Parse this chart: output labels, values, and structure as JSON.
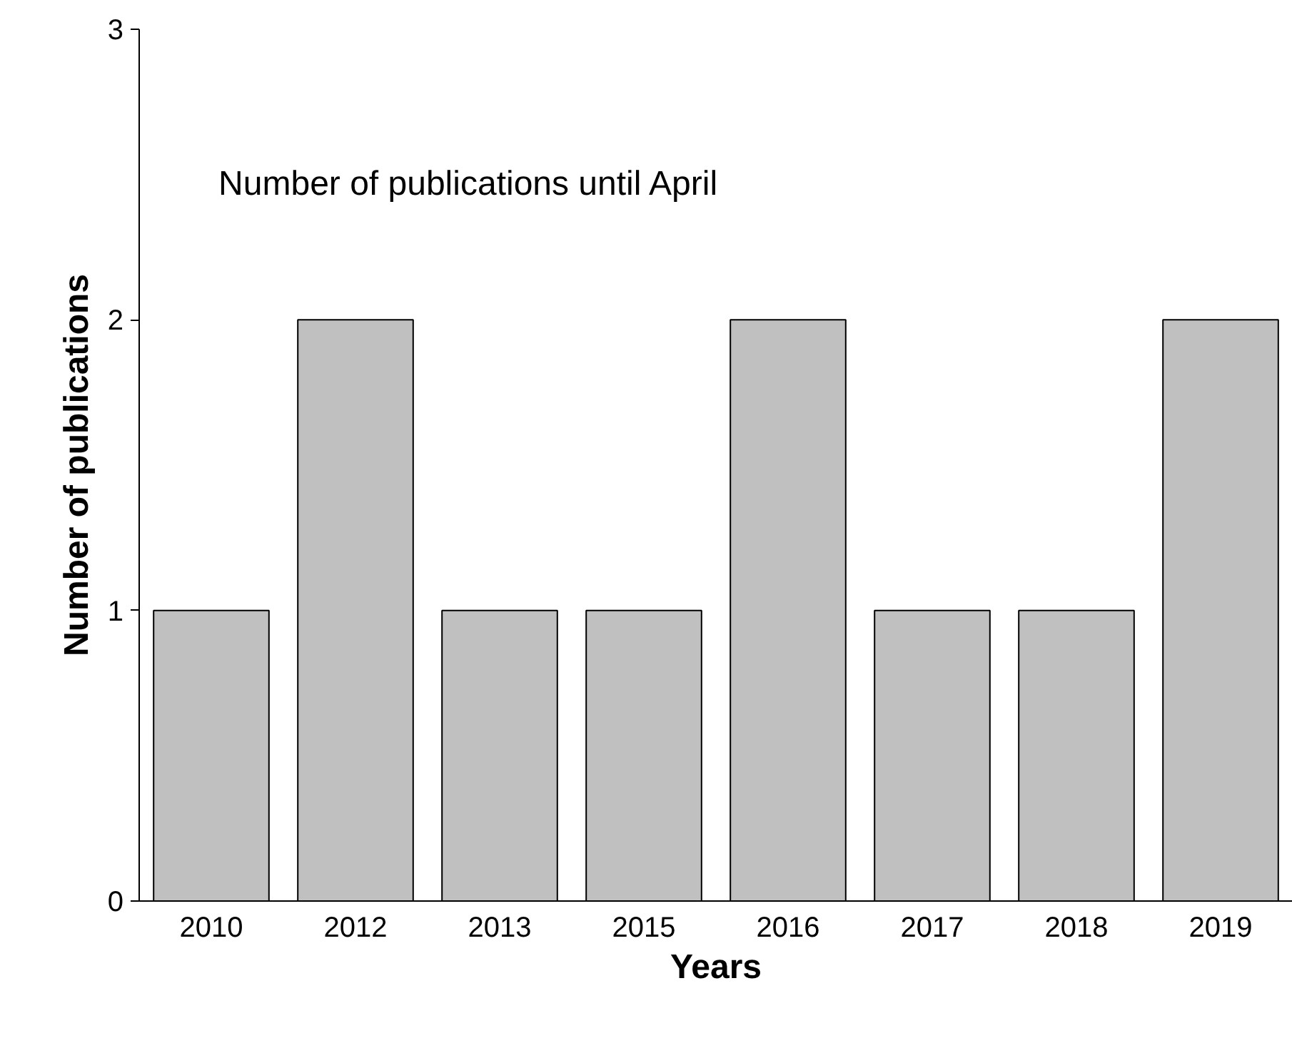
{
  "chart_data": {
    "type": "bar",
    "xlabel": "Years",
    "ylabel": "Number of publications",
    "annotations": [
      "Number of publications until April"
    ],
    "categories": [
      "2010",
      "2012",
      "2013",
      "2015",
      "2016",
      "2017",
      "2018",
      "2019"
    ],
    "values": [
      1,
      2,
      1,
      1,
      2,
      1,
      1,
      2
    ],
    "color": "#c0c0c0",
    "ylim": [
      0,
      3
    ],
    "yticks": [
      0,
      1,
      2,
      3
    ],
    "grid": false
  }
}
